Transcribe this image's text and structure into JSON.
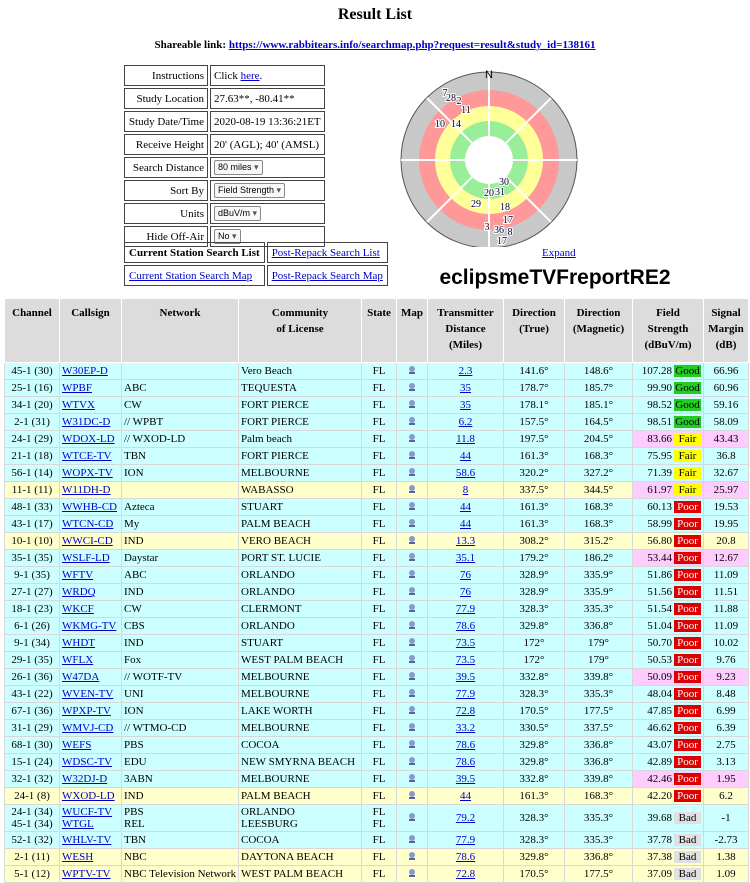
{
  "header": {
    "title": "Result List",
    "share_label": "Shareable link:",
    "share_url": "https://www.rabbitears.info/searchmap.php?request=result&study_id=138161"
  },
  "form": {
    "instructions_label": "Instructions",
    "instructions_pre": "Click",
    "instructions_link": "here",
    "instructions_post": ".",
    "fields": [
      {
        "label": "Study Location",
        "value": "27.63**, -80.41**"
      },
      {
        "label": "Study Date/Time",
        "value": "2020-08-19 13:36:21ET"
      },
      {
        "label": "Receive Height",
        "value": "20' (AGL); 40' (AMSL)"
      }
    ],
    "selects": [
      {
        "label": "Search Distance",
        "value": "80 miles"
      },
      {
        "label": "Sort By",
        "value": "Field Strength"
      },
      {
        "label": "Units",
        "value": "dBuV/m"
      },
      {
        "label": "Hide Off-Air",
        "value": "No"
      }
    ],
    "buttons": [
      "Current Station Search List",
      "Post-Repack Search List",
      "Current Station Search Map",
      "Post-Repack Search Map"
    ]
  },
  "polar": {
    "north": "N",
    "labels": [
      "7",
      "28",
      "2",
      "11",
      "10",
      "14",
      "30",
      "20",
      "31",
      "29",
      "18",
      "17",
      "3",
      "36",
      "8",
      "17"
    ],
    "expand": "Expand",
    "report_name": "eclipsmeTVFreportRE2"
  },
  "table": {
    "headers": [
      [
        "Channel"
      ],
      [
        "Callsign"
      ],
      [
        "Network"
      ],
      [
        "Community",
        "of License"
      ],
      [
        "State"
      ],
      [
        "Map"
      ],
      [
        "Transmitter",
        "Distance",
        "(Miles)"
      ],
      [
        "Direction",
        "(True)"
      ],
      [
        "Direction",
        "(Magnetic)"
      ],
      [
        "Field",
        "Strength",
        "(dBuV/m)"
      ],
      [
        "Signal",
        "Margin",
        "(dB)"
      ]
    ],
    "rows": [
      {
        "stations": [
          {
            "channel": "45-1 (30)",
            "callsign": "W30EP-D",
            "network": "",
            "community": "Vero Beach",
            "state": "FL"
          }
        ],
        "distance": "2.3",
        "dir_true": "141.6°",
        "dir_mag": "148.6°",
        "field": "107.28",
        "rating": "Good",
        "margin": "66.96",
        "row_color": "#ccffff"
      },
      {
        "stations": [
          {
            "channel": "25-1 (16)",
            "callsign": "WPBF",
            "network": "ABC",
            "community": "TEQUESTA",
            "state": "FL"
          }
        ],
        "distance": "35",
        "dir_true": "178.7°",
        "dir_mag": "185.7°",
        "field": "99.90",
        "rating": "Good",
        "margin": "60.96",
        "row_color": "#ccffff"
      },
      {
        "stations": [
          {
            "channel": "34-1 (20)",
            "callsign": "WTVX",
            "network": "CW",
            "community": "FORT PIERCE",
            "state": "FL"
          }
        ],
        "distance": "35",
        "dir_true": "178.1°",
        "dir_mag": "185.1°",
        "field": "98.52",
        "rating": "Good",
        "margin": "59.16",
        "row_color": "#ccffff"
      },
      {
        "stations": [
          {
            "channel": "2-1 (31)",
            "callsign": "W31DC-D",
            "network": "// WPBT",
            "community": "FORT PIERCE",
            "state": "FL"
          }
        ],
        "distance": "6.2",
        "dir_true": "157.5°",
        "dir_mag": "164.5°",
        "field": "98.51",
        "rating": "Good",
        "margin": "58.09",
        "row_color": "#ccffff"
      },
      {
        "stations": [
          {
            "channel": "24-1 (29)",
            "callsign": "WDOX-LD",
            "network": "// WXOD-LD",
            "community": "Palm beach",
            "state": "FL"
          }
        ],
        "distance": "11.8",
        "dir_true": "197.5°",
        "dir_mag": "204.5°",
        "field": "83.66",
        "rating": "Fair",
        "margin": "43.43",
        "row_color": "#ccffff",
        "highlight_color": "#ffccff"
      },
      {
        "stations": [
          {
            "channel": "21-1 (18)",
            "callsign": "WTCE-TV",
            "network": "TBN",
            "community": "FORT PIERCE",
            "state": "FL"
          }
        ],
        "distance": "44",
        "dir_true": "161.3°",
        "dir_mag": "168.3°",
        "field": "75.95",
        "rating": "Fair",
        "margin": "36.8",
        "row_color": "#ccffff"
      },
      {
        "stations": [
          {
            "channel": "56-1 (14)",
            "callsign": "WOPX-TV",
            "network": "ION",
            "community": "MELBOURNE",
            "state": "FL"
          }
        ],
        "distance": "58.6",
        "dir_true": "320.2°",
        "dir_mag": "327.2°",
        "field": "71.39",
        "rating": "Fair",
        "margin": "32.67",
        "row_color": "#ccffff"
      },
      {
        "stations": [
          {
            "channel": "11-1 (11)",
            "callsign": "W11DH-D",
            "network": "",
            "community": "WABASSO",
            "state": "FL"
          }
        ],
        "distance": "8",
        "dir_true": "337.5°",
        "dir_mag": "344.5°",
        "field": "61.97",
        "rating": "Fair",
        "margin": "25.97",
        "row_color": "#ffffcc",
        "highlight_color": "#ffccff"
      },
      {
        "stations": [
          {
            "channel": "48-1 (33)",
            "callsign": "WWHB-CD",
            "network": "Azteca",
            "community": "STUART",
            "state": "FL"
          }
        ],
        "distance": "44",
        "dir_true": "161.3°",
        "dir_mag": "168.3°",
        "field": "60.13",
        "rating": "Poor",
        "margin": "19.53",
        "row_color": "#ccffff"
      },
      {
        "stations": [
          {
            "channel": "43-1 (17)",
            "callsign": "WTCN-CD",
            "network": "My",
            "community": "PALM BEACH",
            "state": "FL"
          }
        ],
        "distance": "44",
        "dir_true": "161.3°",
        "dir_mag": "168.3°",
        "field": "58.99",
        "rating": "Poor",
        "margin": "19.95",
        "row_color": "#ccffff"
      },
      {
        "stations": [
          {
            "channel": "10-1 (10)",
            "callsign": "WWCI-CD",
            "network": "IND",
            "community": "VERO BEACH",
            "state": "FL"
          }
        ],
        "distance": "13.3",
        "dir_true": "308.2°",
        "dir_mag": "315.2°",
        "field": "56.80",
        "rating": "Poor",
        "margin": "20.8",
        "row_color": "#ffffcc"
      },
      {
        "stations": [
          {
            "channel": "35-1 (35)",
            "callsign": "WSLF-LD",
            "network": "Daystar",
            "community": "PORT ST. LUCIE",
            "state": "FL"
          }
        ],
        "distance": "35.1",
        "dir_true": "179.2°",
        "dir_mag": "186.2°",
        "field": "53.44",
        "rating": "Poor",
        "margin": "12.67",
        "row_color": "#ccffff",
        "highlight_color": "#ffccff"
      },
      {
        "stations": [
          {
            "channel": "9-1 (35)",
            "callsign": "WFTV",
            "network": "ABC",
            "community": "ORLANDO",
            "state": "FL"
          }
        ],
        "distance": "76",
        "dir_true": "328.9°",
        "dir_mag": "335.9°",
        "field": "51.86",
        "rating": "Poor",
        "margin": "11.09",
        "row_color": "#ccffff"
      },
      {
        "stations": [
          {
            "channel": "27-1 (27)",
            "callsign": "WRDQ",
            "network": "IND",
            "community": "ORLANDO",
            "state": "FL"
          }
        ],
        "distance": "76",
        "dir_true": "328.9°",
        "dir_mag": "335.9°",
        "field": "51.56",
        "rating": "Poor",
        "margin": "11.51",
        "row_color": "#ccffff"
      },
      {
        "stations": [
          {
            "channel": "18-1 (23)",
            "callsign": "WKCF",
            "network": "CW",
            "community": "CLERMONT",
            "state": "FL"
          }
        ],
        "distance": "77.9",
        "dir_true": "328.3°",
        "dir_mag": "335.3°",
        "field": "51.54",
        "rating": "Poor",
        "margin": "11.88",
        "row_color": "#ccffff"
      },
      {
        "stations": [
          {
            "channel": "6-1 (26)",
            "callsign": "WKMG-TV",
            "network": "CBS",
            "community": "ORLANDO",
            "state": "FL"
          }
        ],
        "distance": "78.6",
        "dir_true": "329.8°",
        "dir_mag": "336.8°",
        "field": "51.04",
        "rating": "Poor",
        "margin": "11.09",
        "row_color": "#ccffff"
      },
      {
        "stations": [
          {
            "channel": "9-1 (34)",
            "callsign": "WHDT",
            "network": "IND",
            "community": "STUART",
            "state": "FL"
          }
        ],
        "distance": "73.5",
        "dir_true": "172°",
        "dir_mag": "179°",
        "field": "50.70",
        "rating": "Poor",
        "margin": "10.02",
        "row_color": "#ccffff"
      },
      {
        "stations": [
          {
            "channel": "29-1 (35)",
            "callsign": "WFLX",
            "network": "Fox",
            "community": "WEST PALM BEACH",
            "state": "FL"
          }
        ],
        "distance": "73.5",
        "dir_true": "172°",
        "dir_mag": "179°",
        "field": "50.53",
        "rating": "Poor",
        "margin": "9.76",
        "row_color": "#ccffff"
      },
      {
        "stations": [
          {
            "channel": "26-1 (36)",
            "callsign": "W47DA",
            "network": "// WOTF-TV",
            "community": "MELBOURNE",
            "state": "FL"
          }
        ],
        "distance": "39.5",
        "dir_true": "332.8°",
        "dir_mag": "339.8°",
        "field": "50.09",
        "rating": "Poor",
        "margin": "9.23",
        "row_color": "#ccffff",
        "highlight_color": "#ffccff"
      },
      {
        "stations": [
          {
            "channel": "43-1 (22)",
            "callsign": "WVEN-TV",
            "network": "UNI",
            "community": "MELBOURNE",
            "state": "FL"
          }
        ],
        "distance": "77.9",
        "dir_true": "328.3°",
        "dir_mag": "335.3°",
        "field": "48.04",
        "rating": "Poor",
        "margin": "8.48",
        "row_color": "#ccffff"
      },
      {
        "stations": [
          {
            "channel": "67-1 (36)",
            "callsign": "WPXP-TV",
            "network": "ION",
            "community": "LAKE WORTH",
            "state": "FL"
          }
        ],
        "distance": "72.8",
        "dir_true": "170.5°",
        "dir_mag": "177.5°",
        "field": "47.85",
        "rating": "Poor",
        "margin": "6.99",
        "row_color": "#ccffff"
      },
      {
        "stations": [
          {
            "channel": "31-1 (29)",
            "callsign": "WMVJ-CD",
            "network": "// WTMO-CD",
            "community": "MELBOURNE",
            "state": "FL"
          }
        ],
        "distance": "33.2",
        "dir_true": "330.5°",
        "dir_mag": "337.5°",
        "field": "46.62",
        "rating": "Poor",
        "margin": "6.39",
        "row_color": "#ccffff"
      },
      {
        "stations": [
          {
            "channel": "68-1 (30)",
            "callsign": "WEFS",
            "network": "PBS",
            "community": "COCOA",
            "state": "FL"
          }
        ],
        "distance": "78.6",
        "dir_true": "329.8°",
        "dir_mag": "336.8°",
        "field": "43.07",
        "rating": "Poor",
        "margin": "2.75",
        "row_color": "#ccffff"
      },
      {
        "stations": [
          {
            "channel": "15-1 (24)",
            "callsign": "WDSC-TV",
            "network": "EDU",
            "community": "NEW SMYRNA BEACH",
            "state": "FL"
          }
        ],
        "distance": "78.6",
        "dir_true": "329.8°",
        "dir_mag": "336.8°",
        "field": "42.89",
        "rating": "Poor",
        "margin": "3.13",
        "row_color": "#ccffff"
      },
      {
        "stations": [
          {
            "channel": "32-1 (32)",
            "callsign": "W32DJ-D",
            "network": "3ABN",
            "community": "MELBOURNE",
            "state": "FL"
          }
        ],
        "distance": "39.5",
        "dir_true": "332.8°",
        "dir_mag": "339.8°",
        "field": "42.46",
        "rating": "Poor",
        "margin": "1.95",
        "row_color": "#ccffff",
        "highlight_color": "#ffccff"
      },
      {
        "stations": [
          {
            "channel": "24-1 (8)",
            "callsign": "WXOD-LD",
            "network": "IND",
            "community": "PALM BEACH",
            "state": "FL"
          }
        ],
        "distance": "44",
        "dir_true": "161.3°",
        "dir_mag": "168.3°",
        "field": "42.20",
        "rating": "Poor",
        "margin": "6.2",
        "row_color": "#ffffcc"
      },
      {
        "stations": [
          {
            "channel": "24-1 (34)",
            "callsign": "WUCF-TV",
            "network": "PBS",
            "community": "ORLANDO",
            "state": "FL"
          },
          {
            "channel": "45-1 (34)",
            "callsign": "WTGL",
            "network": "REL",
            "community": "LEESBURG",
            "state": "FL"
          }
        ],
        "distance": "79.2",
        "dir_true": "328.3°",
        "dir_mag": "335.3°",
        "field": "39.68",
        "rating": "Bad",
        "margin": "-1",
        "row_color": "#ccffff"
      },
      {
        "stations": [
          {
            "channel": "52-1 (32)",
            "callsign": "WHLV-TV",
            "network": "TBN",
            "community": "COCOA",
            "state": "FL"
          }
        ],
        "distance": "77.9",
        "dir_true": "328.3°",
        "dir_mag": "335.3°",
        "field": "37.78",
        "rating": "Bad",
        "margin": "-2.73",
        "row_color": "#ccffff"
      },
      {
        "stations": [
          {
            "channel": "2-1 (11)",
            "callsign": "WESH",
            "network": "NBC",
            "community": "DAYTONA BEACH",
            "state": "FL"
          }
        ],
        "distance": "78.6",
        "dir_true": "329.8°",
        "dir_mag": "336.8°",
        "field": "37.38",
        "rating": "Bad",
        "margin": "1.38",
        "row_color": "#ffffcc"
      },
      {
        "stations": [
          {
            "channel": "5-1 (12)",
            "callsign": "WPTV-TV",
            "network": "NBC Television Network",
            "community": "WEST PALM BEACH",
            "state": "FL"
          }
        ],
        "distance": "72.8",
        "dir_true": "170.5°",
        "dir_mag": "177.5°",
        "field": "37.09",
        "rating": "Bad",
        "margin": "1.09",
        "row_color": "#ffffcc"
      }
    ]
  }
}
